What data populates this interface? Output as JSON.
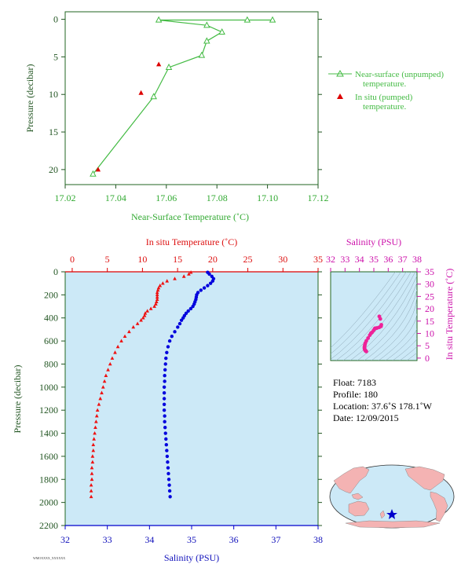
{
  "chart_data": [
    {
      "type": "line",
      "xlabel": "Near-Surface Temperature (˚C)",
      "ylabel": "Pressure (decibar)",
      "xlim": [
        17.02,
        17.12
      ],
      "ylim": [
        22,
        -1
      ],
      "xticks": [
        "17.02",
        "17.04",
        "17.06",
        "17.08",
        "17.10",
        "17.12"
      ],
      "yticks": [
        "0",
        "5",
        "10",
        "15",
        "20"
      ],
      "legend_position": "right",
      "series": [
        {
          "name": "Near-surface (unpumped) temperature.",
          "color": "#44bb44",
          "marker": "triangle-open",
          "x": [
            17.102,
            17.092,
            17.057,
            17.076,
            17.082,
            17.076,
            17.074,
            17.061,
            17.055,
            17.031
          ],
          "y": [
            0.1,
            0.1,
            0.1,
            0.8,
            1.7,
            2.9,
            4.8,
            6.4,
            10.3,
            20.6
          ]
        },
        {
          "name": "In situ (pumped) temperature.",
          "color": "#dd0000",
          "marker": "triangle-filled",
          "x": [
            17.057,
            17.05,
            17.033
          ],
          "y": [
            6.0,
            9.8,
            20.0
          ]
        }
      ]
    },
    {
      "type": "scatter",
      "x_top_label": "In situ Temperature (˚C)",
      "x_bottom_label": "Salinity (PSU)",
      "ylabel": "Pressure (decibar)",
      "temp_lim": [
        -1,
        35
      ],
      "sal_lim": [
        32,
        38
      ],
      "ylim": [
        2200,
        0
      ],
      "temp_ticks": [
        "0",
        "5",
        "10",
        "15",
        "20",
        "25",
        "30",
        "35"
      ],
      "sal_ticks": [
        "32",
        "33",
        "34",
        "35",
        "36",
        "37",
        "38"
      ],
      "pressure_ticks": [
        "0",
        "200",
        "400",
        "600",
        "800",
        "1000",
        "1200",
        "1400",
        "1600",
        "1800",
        "2000",
        "2200"
      ],
      "series": [
        {
          "name": "temperature",
          "color": "#ee1111",
          "pressure": [
            5,
            20,
            40,
            60,
            80,
            100,
            120,
            140,
            160,
            180,
            200,
            220,
            240,
            260,
            280,
            300,
            320,
            340,
            360,
            380,
            400,
            420,
            450,
            480,
            520,
            560,
            600,
            650,
            700,
            750,
            800,
            850,
            900,
            950,
            1000,
            1050,
            1100,
            1150,
            1200,
            1250,
            1300,
            1350,
            1400,
            1450,
            1500,
            1550,
            1600,
            1650,
            1700,
            1750,
            1800,
            1850,
            1900,
            1950
          ],
          "values": [
            16.9,
            16.6,
            15.9,
            14.6,
            13.5,
            12.9,
            12.5,
            12.3,
            12.2,
            12.1,
            12.1,
            12.1,
            12.1,
            12.0,
            11.9,
            11.7,
            11.2,
            10.7,
            10.4,
            10.3,
            10.1,
            9.8,
            9.3,
            8.7,
            8.1,
            7.5,
            7.0,
            6.5,
            6.1,
            5.7,
            5.4,
            5.1,
            4.8,
            4.6,
            4.4,
            4.2,
            4.0,
            3.8,
            3.6,
            3.5,
            3.4,
            3.3,
            3.2,
            3.1,
            3.0,
            3.0,
            2.9,
            2.9,
            2.8,
            2.8,
            2.8,
            2.7,
            2.7,
            2.7
          ]
        },
        {
          "name": "salinity",
          "color": "#0000dd",
          "pressure": [
            5,
            20,
            40,
            60,
            80,
            100,
            120,
            140,
            160,
            180,
            200,
            220,
            240,
            260,
            280,
            300,
            320,
            340,
            360,
            380,
            400,
            420,
            450,
            480,
            520,
            560,
            600,
            650,
            700,
            750,
            800,
            850,
            900,
            950,
            1000,
            1050,
            1100,
            1150,
            1200,
            1250,
            1300,
            1350,
            1400,
            1450,
            1500,
            1550,
            1600,
            1650,
            1700,
            1750,
            1800,
            1850,
            1900,
            1950
          ],
          "values": [
            35.38,
            35.42,
            35.48,
            35.52,
            35.5,
            35.45,
            35.38,
            35.3,
            35.22,
            35.15,
            35.12,
            35.11,
            35.1,
            35.08,
            35.06,
            35.03,
            34.98,
            34.92,
            34.87,
            34.83,
            34.8,
            34.76,
            34.72,
            34.67,
            34.6,
            34.53,
            34.48,
            34.44,
            34.41,
            34.39,
            34.38,
            34.37,
            34.36,
            34.36,
            34.35,
            34.35,
            34.35,
            34.35,
            34.35,
            34.36,
            34.36,
            34.37,
            34.38,
            34.39,
            34.4,
            34.41,
            34.42,
            34.43,
            34.44,
            34.45,
            34.46,
            34.47,
            34.48,
            34.49
          ]
        }
      ]
    },
    {
      "type": "scatter",
      "xlabel": "Salinity (PSU)",
      "ylabel": "In situ Temperature (˚C)",
      "xlim": [
        32,
        38
      ],
      "ylim": [
        -1,
        35
      ],
      "xticks": [
        "32",
        "33",
        "34",
        "35",
        "36",
        "37",
        "38"
      ],
      "yticks": [
        "0",
        "5",
        "10",
        "15",
        "20",
        "25",
        "30",
        "35"
      ],
      "color": "#ee2299",
      "x": [
        35.38,
        35.45,
        35.52,
        35.5,
        35.38,
        35.22,
        35.12,
        35.1,
        35.06,
        34.98,
        34.87,
        34.8,
        34.72,
        34.6,
        34.48,
        34.41,
        34.38,
        34.36,
        34.35,
        34.35,
        34.36,
        34.38,
        34.4,
        34.42,
        34.44,
        34.46,
        34.48
      ],
      "y": [
        16.9,
        15.9,
        13.5,
        12.9,
        12.5,
        12.2,
        12.1,
        12.1,
        11.9,
        11.2,
        10.4,
        10.1,
        9.3,
        8.1,
        7.0,
        6.1,
        5.4,
        4.8,
        4.4,
        4.0,
        3.6,
        3.4,
        3.2,
        3.0,
        2.9,
        2.8,
        2.7
      ]
    }
  ],
  "info": {
    "float": "Float:  7183",
    "profile": "Profile:  180",
    "location": "Location:  37.6˚S  178.1˚W",
    "date": "Date:  12/09/2015"
  },
  "footer": "WMOXXXX_XXXXXX",
  "map": {
    "land_color": "#f4b3b3",
    "ocean_color": "#cce9f7",
    "marker_color": "#0000cc"
  }
}
